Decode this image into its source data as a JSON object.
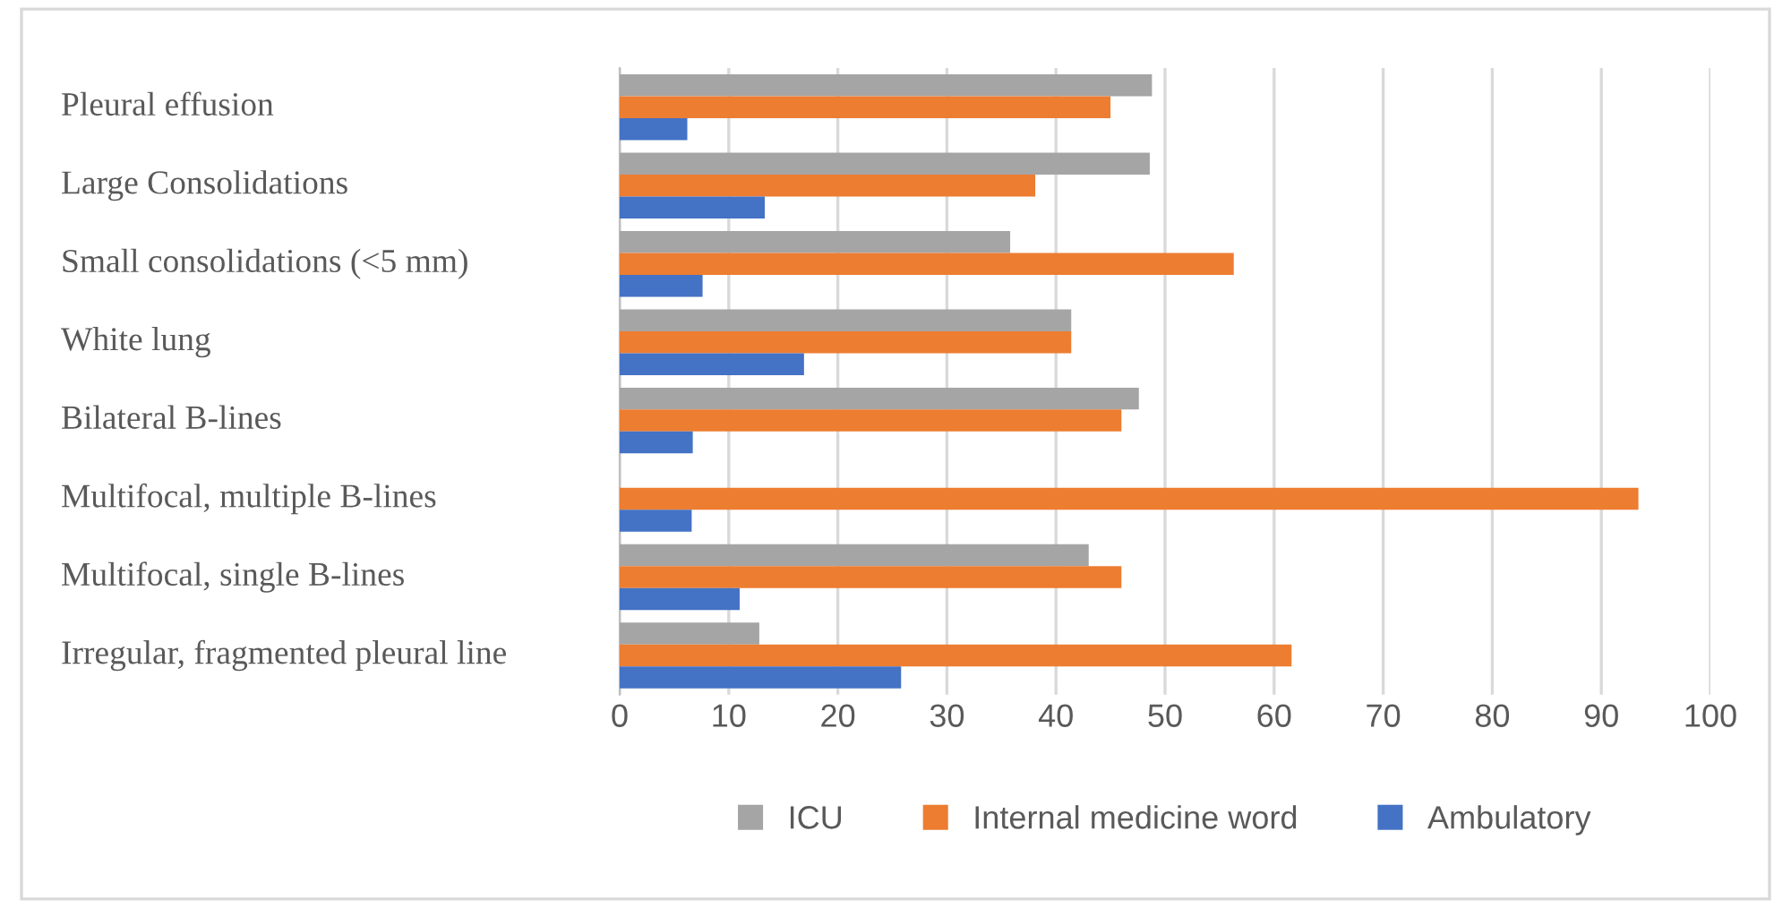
{
  "chart_data": {
    "type": "bar",
    "orientation": "horizontal",
    "categories": [
      "Pleural effusion",
      "Large Consolidations",
      "Small consolidations (<5 mm)",
      "White lung",
      "Bilateral B-lines",
      "Multifocal, multiple B-lines",
      "Multifocal, single B-lines",
      "Irregular, fragmented pleural line"
    ],
    "series": [
      {
        "name": "ICU",
        "color": "#a5a5a5",
        "values": [
          48.8,
          48.6,
          35.8,
          41.4,
          47.6,
          null,
          43.0,
          12.8
        ]
      },
      {
        "name": "Internal medicine word",
        "color": "#ed7d31",
        "values": [
          45.0,
          38.1,
          56.3,
          41.4,
          46.0,
          93.4,
          46.0,
          61.6
        ]
      },
      {
        "name": "Ambulatory",
        "color": "#4472c4",
        "values": [
          6.2,
          13.3,
          7.6,
          16.9,
          6.7,
          6.6,
          11.0,
          25.8
        ]
      }
    ],
    "xlim": [
      0,
      100
    ],
    "xticks": [
      0,
      10,
      20,
      30,
      40,
      50,
      60,
      70,
      80,
      90,
      100
    ],
    "grid": "x",
    "legend": "bottom"
  }
}
